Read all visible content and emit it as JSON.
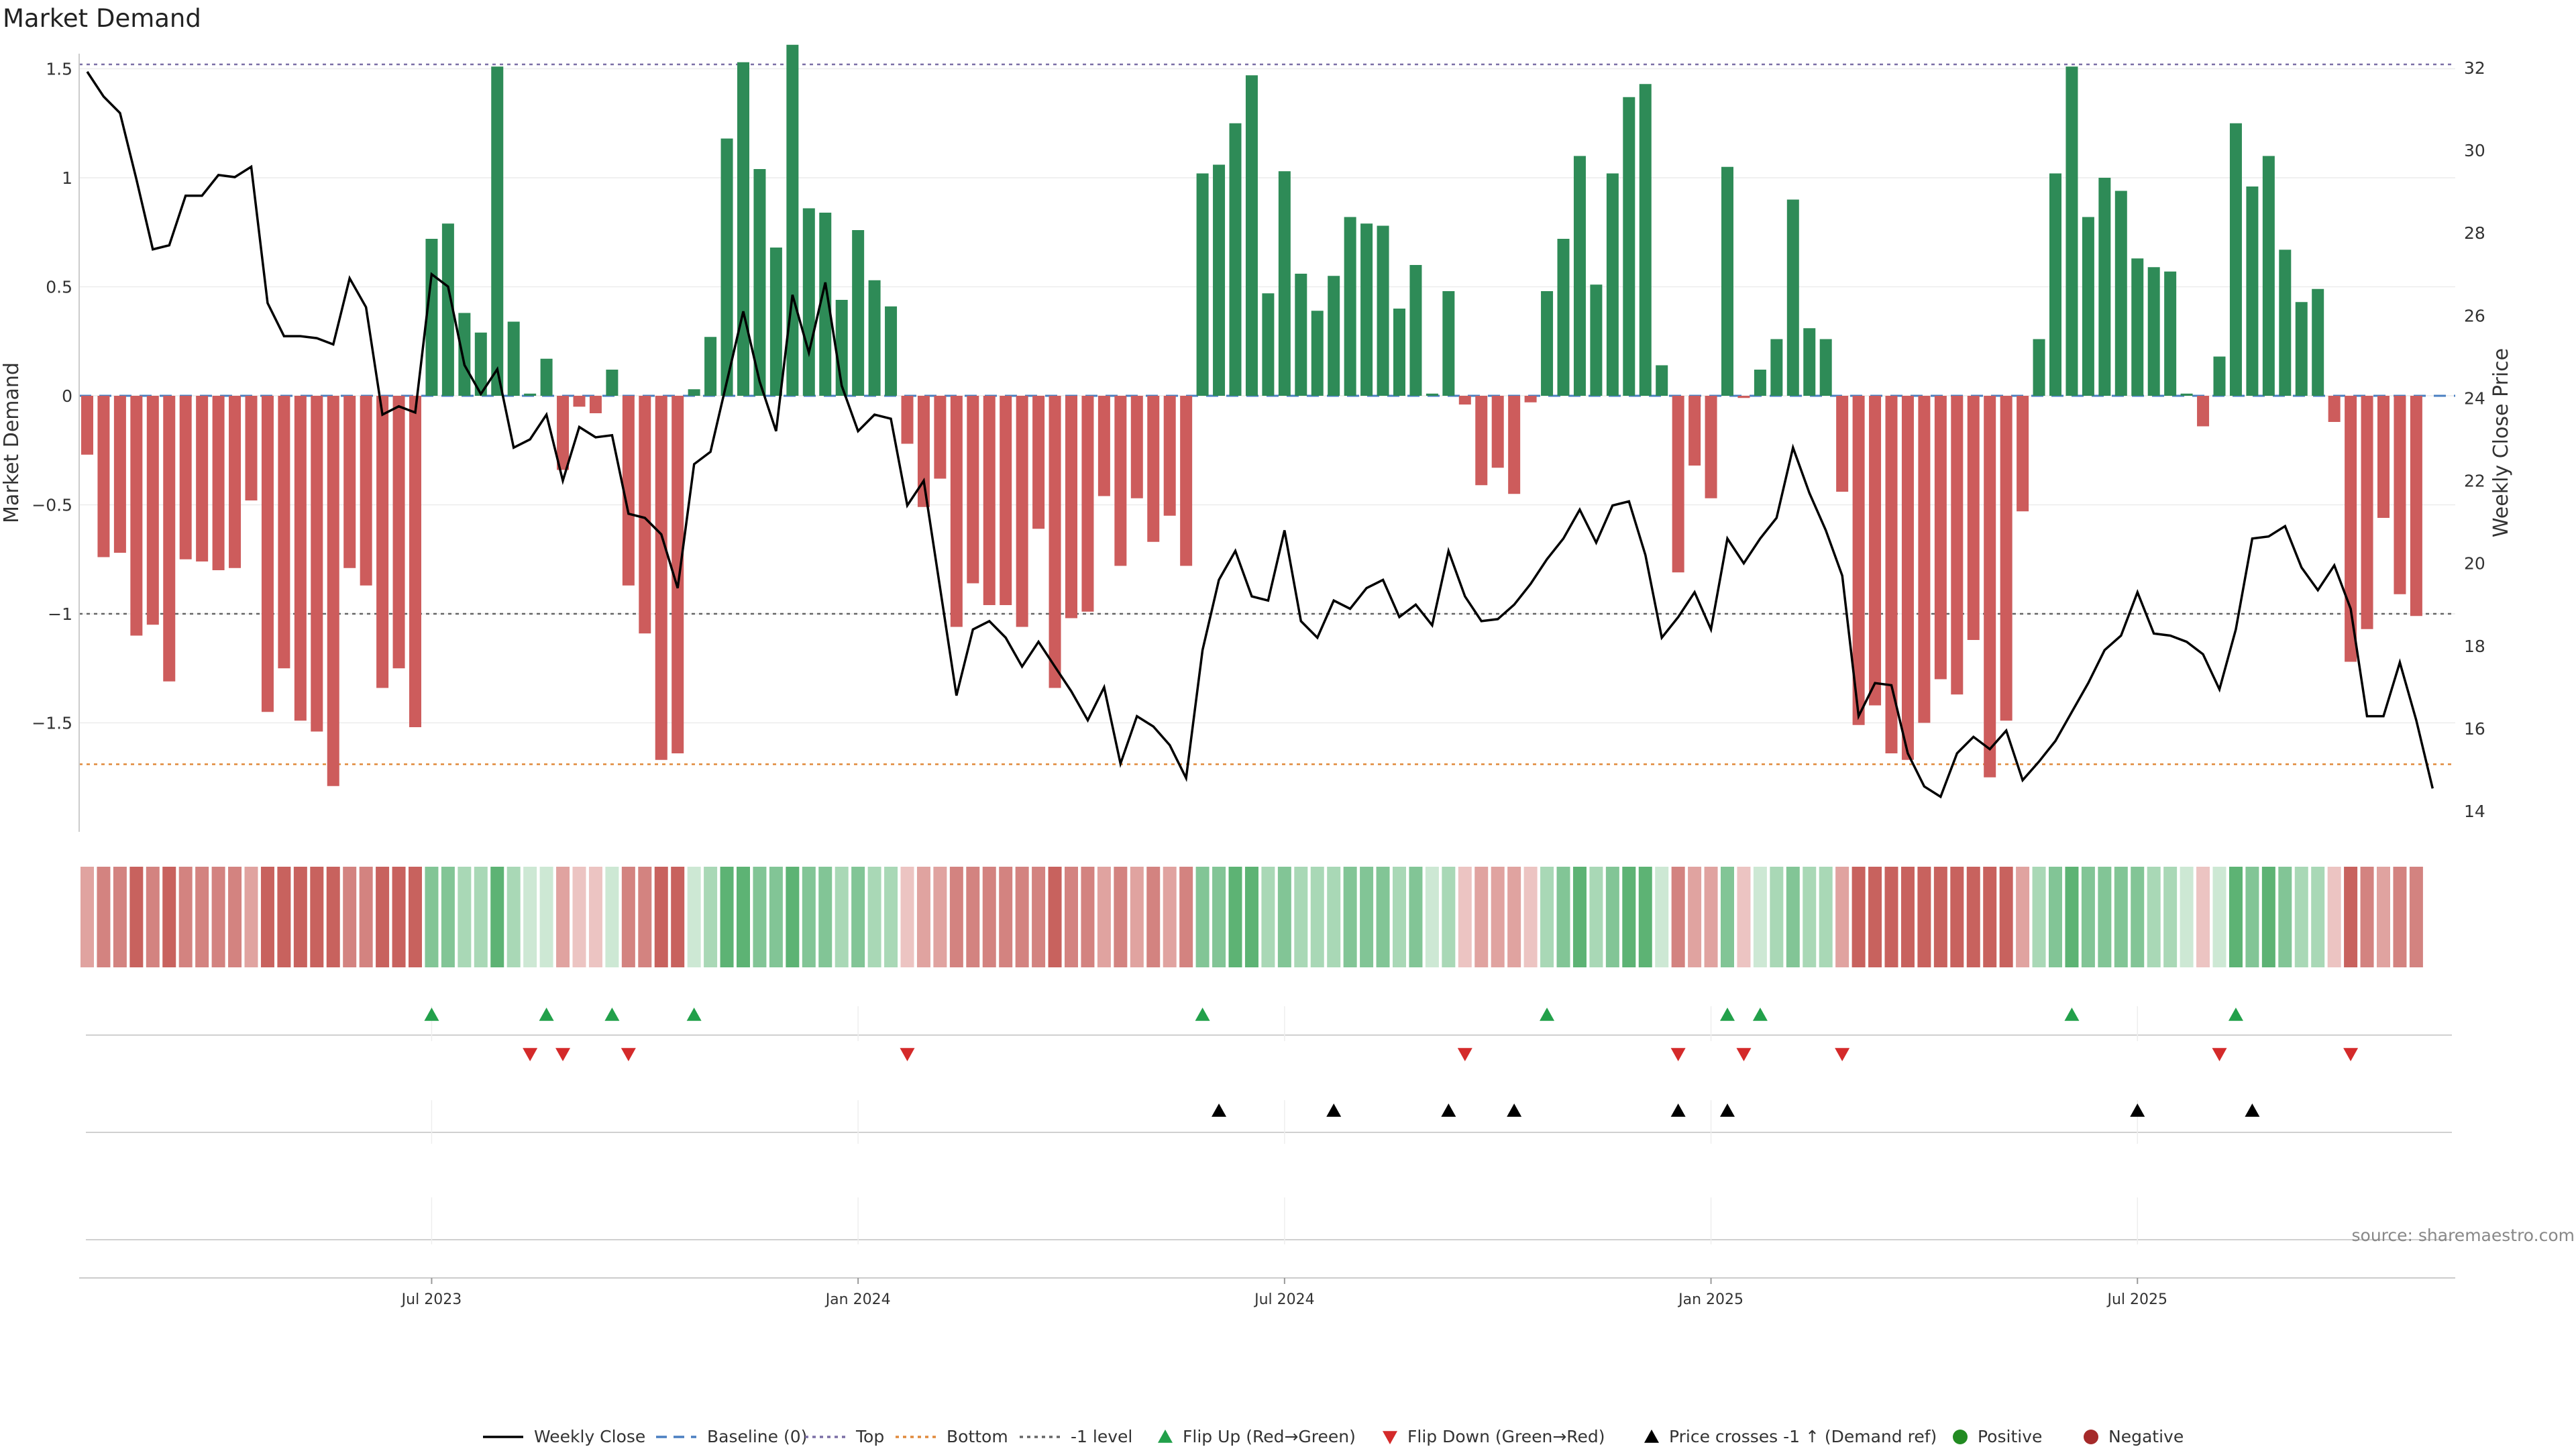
{
  "chart_data": {
    "type": "bar",
    "title": "Market Demand",
    "ylabel": "Market Demand",
    "y2label": "Weekly Close Price",
    "ylim": [
      -2.0,
      1.6
    ],
    "y2lim": [
      13.5,
      32.5
    ],
    "yticks": [
      "1.5",
      "1",
      "0.5",
      "0",
      "−0.5",
      "−1",
      "−1.5"
    ],
    "yticks_values": [
      1.5,
      1,
      0.5,
      0,
      -0.5,
      -1,
      -1.5
    ],
    "y2ticks": [
      "32",
      "30",
      "28",
      "26",
      "24",
      "22",
      "20",
      "18",
      "16",
      "14"
    ],
    "y2ticks_values": [
      32,
      30,
      28,
      26,
      24,
      22,
      20,
      18,
      16,
      14
    ],
    "reference_lines": {
      "top": 1.52,
      "bottom": -1.69,
      "minus_one": -1.0,
      "baseline": 0
    },
    "xticks": [
      "Jul 2023",
      "Jan 2024",
      "Jul 2024",
      "Jan 2025",
      "Jul 2025"
    ],
    "xticks_week_index": [
      21,
      47,
      73,
      99,
      125
    ],
    "demand": [
      -0.27,
      -0.74,
      -0.72,
      -1.1,
      -1.05,
      -1.31,
      -0.75,
      -0.76,
      -0.8,
      -0.79,
      -0.48,
      -1.45,
      -1.25,
      -1.49,
      -1.54,
      -1.79,
      -0.79,
      -0.87,
      -1.34,
      -1.25,
      -1.52,
      0.72,
      0.79,
      0.38,
      0.29,
      1.51,
      0.34,
      0.01,
      0.17,
      -0.34,
      -0.05,
      -0.08,
      0.12,
      -0.87,
      -1.09,
      -1.67,
      -1.64,
      0.03,
      0.27,
      1.18,
      1.53,
      1.04,
      0.68,
      1.61,
      0.86,
      0.84,
      0.44,
      0.76,
      0.53,
      0.41,
      -0.22,
      -0.51,
      -0.38,
      -1.06,
      -0.86,
      -0.96,
      -0.96,
      -1.06,
      -0.61,
      -1.34,
      -1.02,
      -0.99,
      -0.46,
      -0.78,
      -0.47,
      -0.67,
      -0.55,
      -0.78,
      1.02,
      1.06,
      1.25,
      1.47,
      0.47,
      1.03,
      0.56,
      0.39,
      0.55,
      0.82,
      0.79,
      0.78,
      0.4,
      0.6,
      0.01,
      0.48,
      -0.04,
      -0.41,
      -0.33,
      -0.45,
      -0.03,
      0.48,
      0.72,
      1.1,
      0.51,
      1.02,
      1.37,
      1.43,
      0.14,
      -0.81,
      -0.32,
      -0.47,
      1.05,
      -0.01,
      0.12,
      0.26,
      0.9,
      0.31,
      0.26,
      -0.44,
      -1.51,
      -1.42,
      -1.64,
      -1.67,
      -1.5,
      -1.3,
      -1.37,
      -1.12,
      -1.75,
      -1.49,
      -0.53,
      0.26,
      1.02,
      1.51,
      0.82,
      1.0,
      0.94,
      0.63,
      0.59,
      0.57,
      0.01,
      -0.14,
      0.18,
      1.25,
      0.96,
      1.1,
      0.67,
      0.43,
      0.49,
      -0.12,
      -1.22,
      -1.07,
      -0.56,
      -0.91,
      -1.01
    ],
    "close": [
      31.9,
      31.3,
      30.9,
      29.3,
      27.6,
      27.7,
      28.9,
      28.9,
      29.4,
      29.35,
      29.6,
      26.3,
      25.5,
      25.5,
      25.45,
      25.3,
      26.9,
      26.2,
      23.6,
      23.8,
      23.65,
      27.0,
      26.7,
      24.8,
      24.1,
      24.7,
      22.8,
      23.0,
      23.6,
      22.0,
      23.3,
      23.05,
      23.1,
      21.2,
      21.1,
      20.7,
      19.4,
      22.4,
      22.7,
      24.4,
      26.1,
      24.4,
      23.2,
      26.5,
      25.1,
      26.8,
      24.3,
      23.2,
      23.6,
      23.5,
      21.4,
      22.0,
      19.4,
      16.8,
      18.4,
      18.6,
      18.2,
      17.5,
      18.1,
      17.5,
      16.9,
      16.2,
      17.0,
      15.15,
      16.3,
      16.05,
      15.6,
      14.8,
      17.9,
      19.6,
      20.3,
      19.2,
      19.1,
      20.8,
      18.6,
      18.2,
      19.1,
      18.9,
      19.4,
      19.6,
      18.7,
      19.0,
      18.5,
      20.3,
      19.2,
      18.6,
      18.65,
      19.0,
      19.5,
      20.1,
      20.6,
      21.3,
      20.5,
      21.4,
      21.5,
      20.2,
      18.2,
      18.7,
      19.3,
      18.4,
      20.6,
      20.0,
      20.6,
      21.1,
      22.8,
      21.7,
      20.8,
      19.7,
      16.3,
      17.1,
      17.05,
      15.4,
      14.6,
      14.35,
      15.4,
      15.8,
      15.5,
      15.95,
      14.75,
      15.2,
      15.7,
      16.4,
      17.1,
      17.9,
      18.25,
      19.3,
      18.3,
      18.25,
      18.1,
      17.8,
      16.95,
      18.4,
      20.6,
      20.65,
      20.9,
      19.9,
      19.35,
      19.95,
      18.9,
      16.3,
      16.3,
      17.6,
      16.2,
      14.55
    ],
    "flip_up_weeks": [
      21,
      28,
      32,
      37,
      68,
      89,
      100,
      102,
      121,
      131
    ],
    "flip_down_weeks": [
      27,
      29,
      33,
      50,
      84,
      97,
      101,
      107,
      130,
      138
    ],
    "price_cross_weeks": [
      69,
      76,
      83,
      87,
      97,
      100,
      125,
      132
    ],
    "legend": [
      "Weekly Close",
      "Baseline (0)",
      "Top",
      "Bottom",
      "-1 level",
      "Flip Up (Red→Green)",
      "Flip Down (Green→Red)",
      "Price crosses -1 ↑ (Demand ref)",
      "Positive",
      "Negative"
    ],
    "source": "source: sharemaestro.com",
    "colors": {
      "positive": "#2e8b57",
      "negative": "#cd5c5c",
      "line": "#000000",
      "baseline": "#4a7fc1",
      "top": "#7b6fa6",
      "bottom": "#e08a3c",
      "minus_one": "#666666",
      "flip_up": "#22a04a",
      "flip_down": "#d42a2a",
      "cross": "#000000",
      "legend_positive": "#228b22",
      "legend_negative": "#a52a2a"
    }
  }
}
